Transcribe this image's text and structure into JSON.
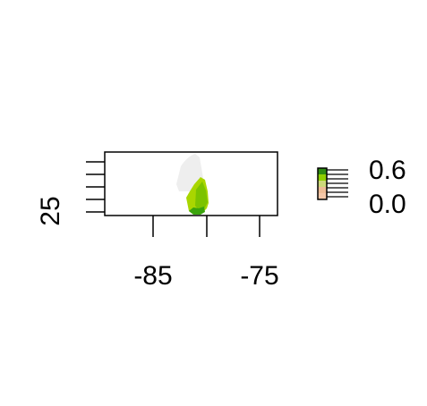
{
  "map": {
    "x_axis": {
      "tick_values": [
        -85,
        -80,
        -75
      ],
      "tick_labels": [
        "-85",
        "",
        "-75"
      ]
    },
    "y_axis": {
      "tick_count": 5,
      "labels": [
        "25"
      ]
    },
    "legend": {
      "labels": [
        "0.6",
        "0.0"
      ],
      "scale_max_label": "0.6",
      "scale_min_label": "0.0",
      "colors": [
        "#2e8b12",
        "#8fcf00",
        "#cdd97a",
        "#eebc96",
        "#f4c7a8"
      ],
      "swatch_count": 5
    },
    "fill_colors": {
      "no_data": "#efefef",
      "low": "#a9d600",
      "mid": "#7cc300",
      "high": "#3aa30c"
    }
  }
}
